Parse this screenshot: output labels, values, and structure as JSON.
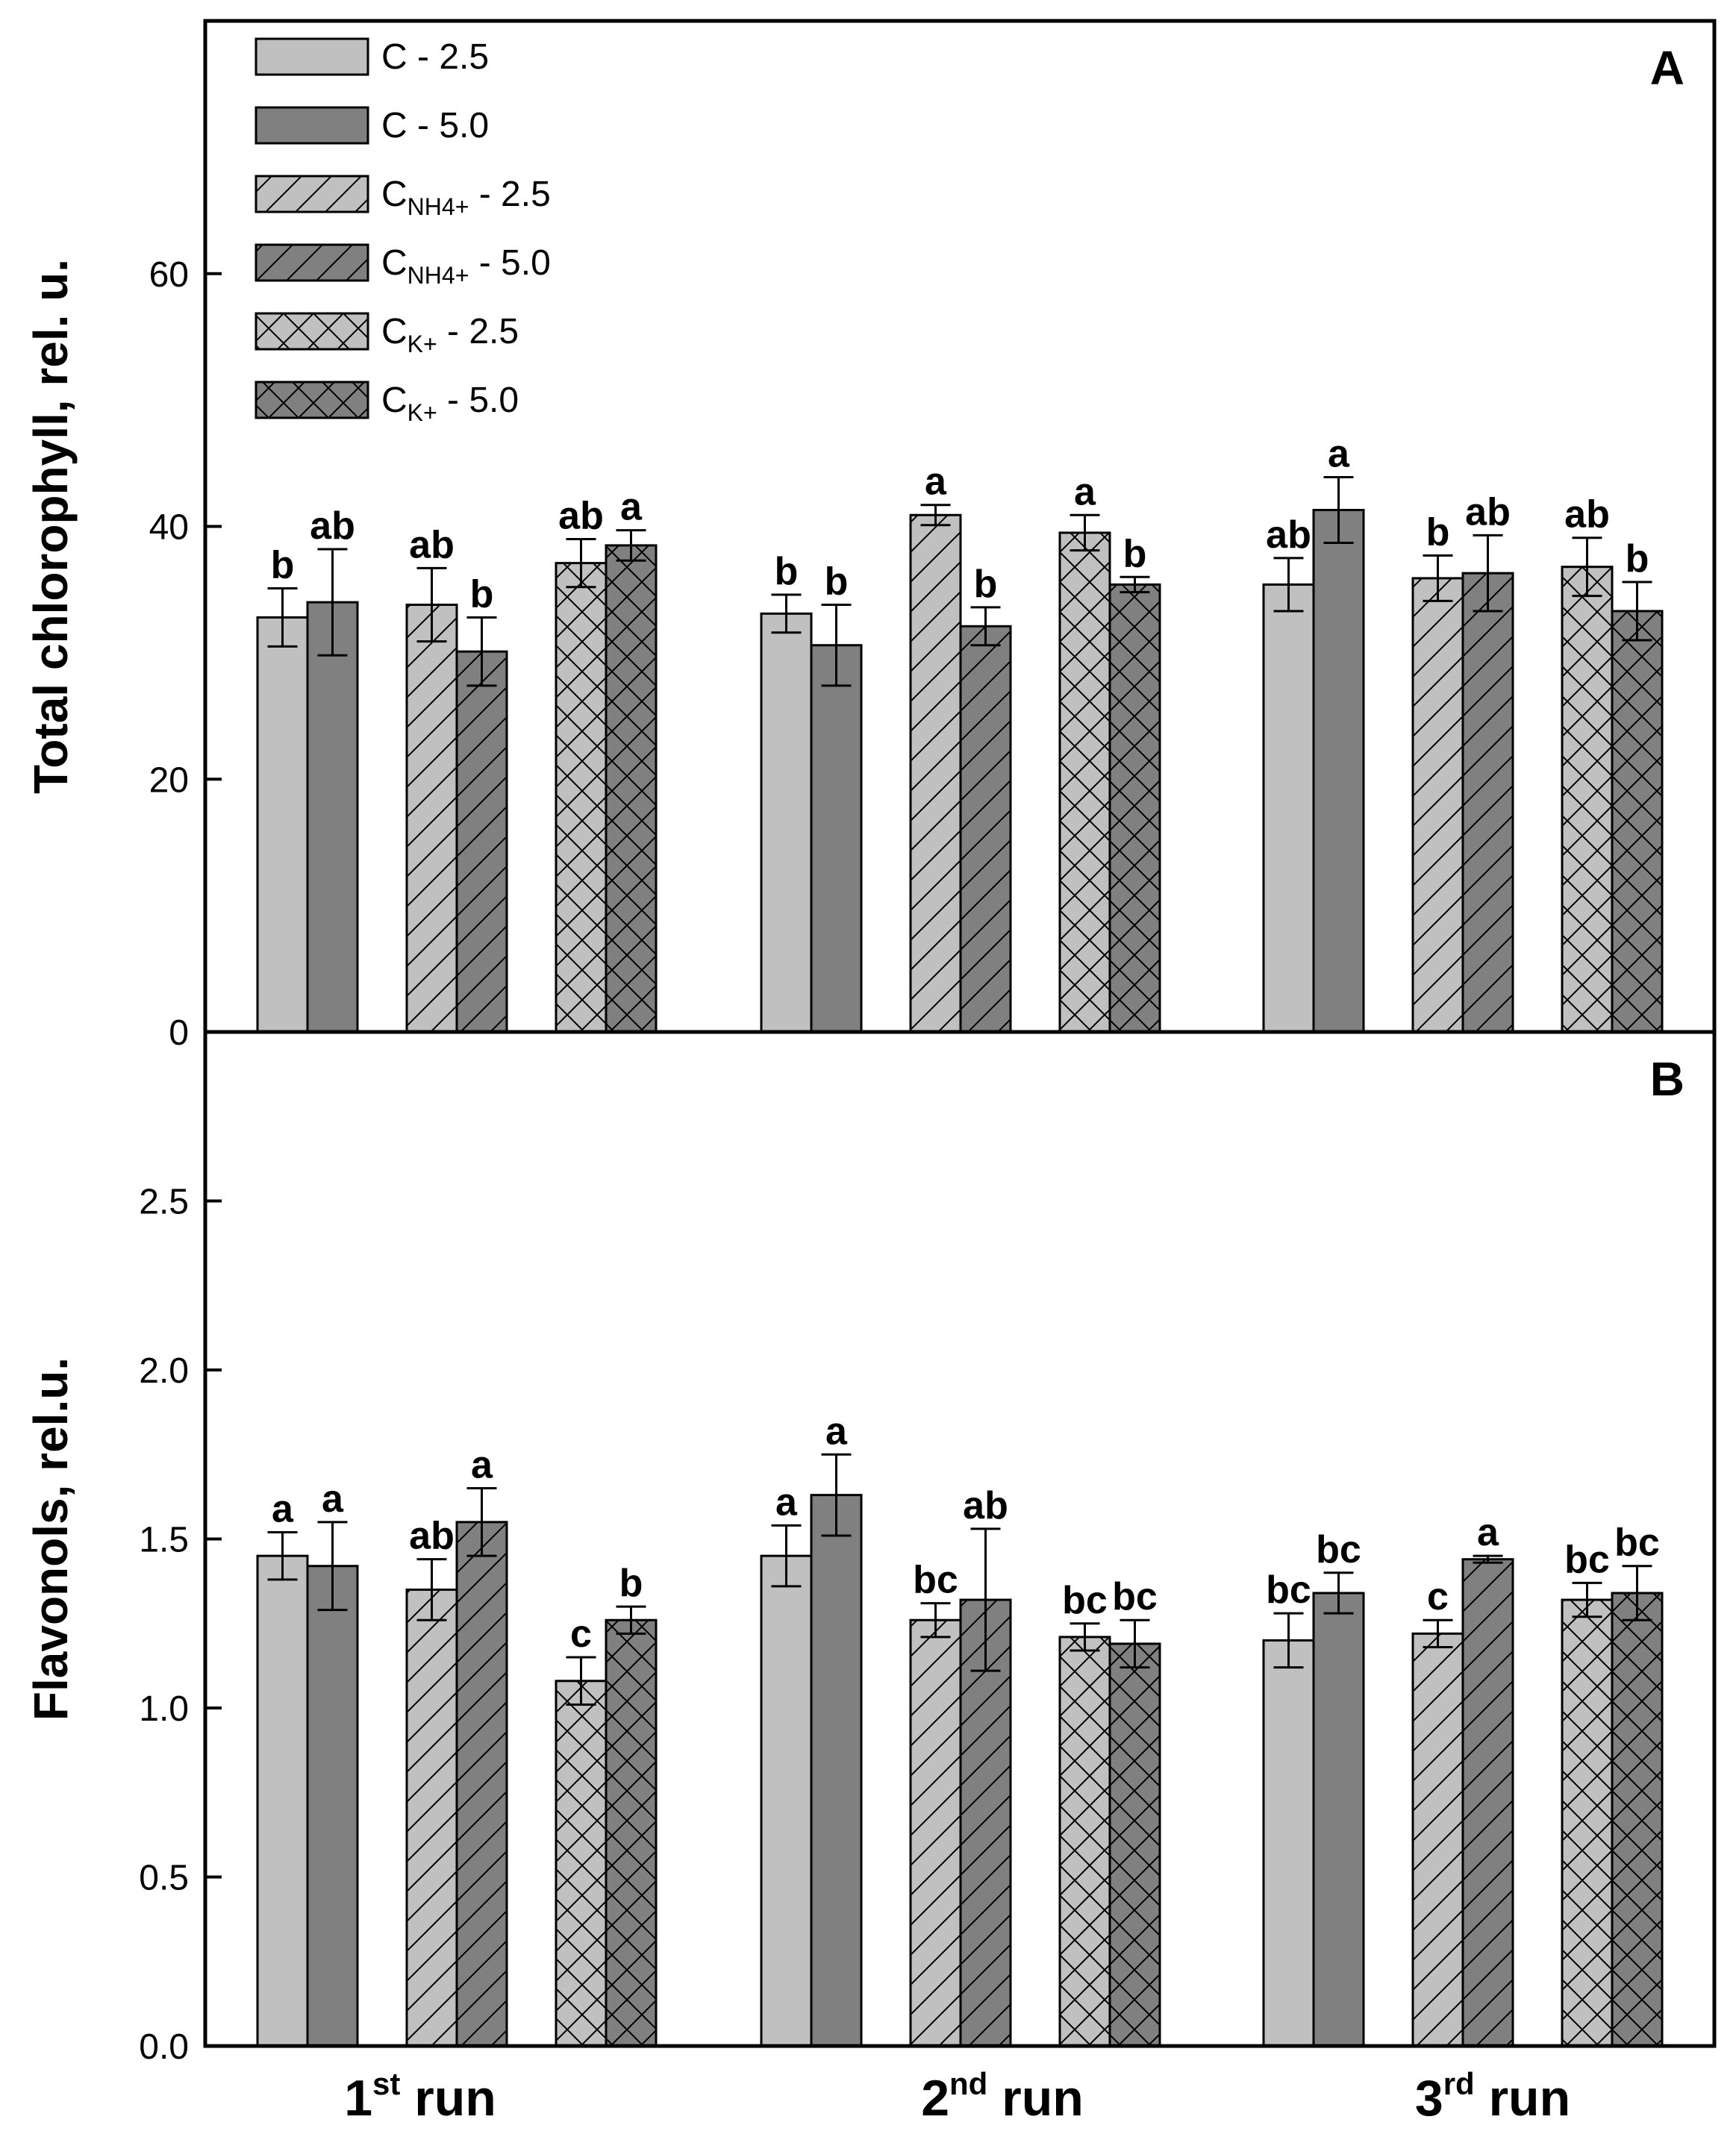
{
  "chart_data": [
    {
      "type": "bar",
      "panel": "A",
      "ylabel": "Total chlorophyll, rel. u.",
      "ylim": [
        0,
        80
      ],
      "yticks": [
        "0",
        "20",
        "40",
        "60"
      ],
      "yticks_values": [
        0,
        20,
        40,
        60
      ],
      "categories": [
        "1st run",
        "2nd run",
        "3rd run"
      ],
      "series": [
        {
          "name": "C - 2.5",
          "values": [
            32.8,
            33.1,
            35.4
          ],
          "errors": [
            2.3,
            1.5,
            2.1
          ],
          "letters": [
            "b",
            "b",
            "ab"
          ]
        },
        {
          "name": "C - 5.0",
          "values": [
            34.0,
            30.6,
            41.3
          ],
          "errors": [
            4.2,
            3.2,
            2.6
          ],
          "letters": [
            "ab",
            "b",
            "a"
          ]
        },
        {
          "name": "CNH4+ - 2.5",
          "values": [
            33.8,
            40.9,
            35.9
          ],
          "errors": [
            2.9,
            0.8,
            1.8
          ],
          "letters": [
            "ab",
            "a",
            "b"
          ]
        },
        {
          "name": "CNH4+ - 5.0",
          "values": [
            30.1,
            32.1,
            36.3
          ],
          "errors": [
            2.7,
            1.5,
            3.0
          ],
          "letters": [
            "b",
            "b",
            "ab"
          ]
        },
        {
          "name": "CK+ - 2.5",
          "values": [
            37.1,
            39.5,
            36.8
          ],
          "errors": [
            1.9,
            1.4,
            2.3
          ],
          "letters": [
            "ab",
            "a",
            "ab"
          ]
        },
        {
          "name": "CK+ - 5.0",
          "values": [
            38.5,
            35.4,
            33.3
          ],
          "errors": [
            1.2,
            0.6,
            2.3
          ],
          "letters": [
            "a",
            "b",
            "b"
          ]
        }
      ]
    },
    {
      "type": "bar",
      "panel": "B",
      "ylabel": "Flavonols, rel.u.",
      "ylim": [
        0,
        3.0
      ],
      "yticks": [
        "0.0",
        "0.5",
        "1.0",
        "1.5",
        "2.0",
        "2.5"
      ],
      "yticks_values": [
        0,
        0.5,
        1.0,
        1.5,
        2.0,
        2.5
      ],
      "categories": [
        "1st run",
        "2nd run",
        "3rd run"
      ],
      "series": [
        {
          "name": "C - 2.5",
          "values": [
            1.45,
            1.45,
            1.2
          ],
          "errors": [
            0.07,
            0.09,
            0.08
          ],
          "letters": [
            "a",
            "a",
            "bc"
          ]
        },
        {
          "name": "C - 5.0",
          "values": [
            1.42,
            1.63,
            1.34
          ],
          "errors": [
            0.13,
            0.12,
            0.06
          ],
          "letters": [
            "a",
            "a",
            "bc"
          ]
        },
        {
          "name": "CNH4+ - 2.5",
          "values": [
            1.35,
            1.26,
            1.22
          ],
          "errors": [
            0.09,
            0.05,
            0.04
          ],
          "letters": [
            "ab",
            "bc",
            "c"
          ]
        },
        {
          "name": "CNH4+ - 5.0",
          "values": [
            1.55,
            1.32,
            1.44
          ],
          "errors": [
            0.1,
            0.21,
            0.01
          ],
          "letters": [
            "a",
            "ab",
            "a"
          ]
        },
        {
          "name": "CK+ - 2.5",
          "values": [
            1.08,
            1.21,
            1.32
          ],
          "errors": [
            0.07,
            0.04,
            0.05
          ],
          "letters": [
            "c",
            "bc",
            "bc"
          ]
        },
        {
          "name": "CK+ - 5.0",
          "values": [
            1.26,
            1.19,
            1.34
          ],
          "errors": [
            0.04,
            0.07,
            0.08
          ],
          "letters": [
            "b",
            "bc",
            "bc"
          ]
        }
      ]
    }
  ],
  "x_groups": [
    {
      "num": "1",
      "sup": "st",
      "word": " run"
    },
    {
      "num": "2",
      "sup": "nd",
      "word": " run"
    },
    {
      "num": "3",
      "sup": "rd",
      "word": " run"
    }
  ],
  "legend": [
    {
      "main": "C - 2.5",
      "sub": "",
      "tail": "",
      "fill": "light",
      "pattern": "none"
    },
    {
      "main": "C - 5.0",
      "sub": "",
      "tail": "",
      "fill": "dark",
      "pattern": "none"
    },
    {
      "main": "C",
      "sub": "NH4+",
      "tail": " - 2.5",
      "fill": "light",
      "pattern": "diag"
    },
    {
      "main": "C",
      "sub": "NH4+",
      "tail": " - 5.0",
      "fill": "dark",
      "pattern": "diag"
    },
    {
      "main": "C",
      "sub": "K+",
      "tail": " - 2.5",
      "fill": "light",
      "pattern": "cross"
    },
    {
      "main": "C",
      "sub": "K+",
      "tail": " - 5.0",
      "fill": "dark",
      "pattern": "cross"
    }
  ],
  "colors": {
    "light": "#c0c0c0",
    "dark": "#808080",
    "line": "#000000"
  }
}
